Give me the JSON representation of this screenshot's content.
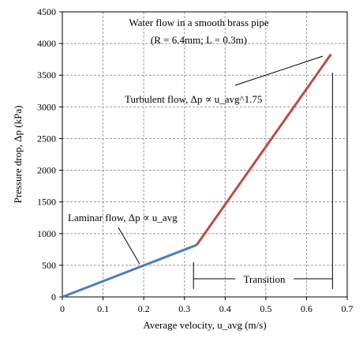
{
  "chart_data": {
    "type": "line",
    "title": "Water flow in a smooth brass pipe",
    "subtitle": "(R = 6.4mm; L = 0.3m)",
    "xlabel": "Average velocity, u_avg (m/s)",
    "ylabel": "Pressure drop, Δp (kPa)",
    "xlim": [
      0,
      0.7
    ],
    "ylim": [
      0,
      4500
    ],
    "x_ticks": [
      "0",
      "0.1",
      "0.2",
      "0.3",
      "0.4",
      "0.5",
      "0.6",
      "0.7"
    ],
    "y_ticks": [
      "0",
      "500",
      "1000",
      "1500",
      "2000",
      "2500",
      "3000",
      "3500",
      "4000",
      "4500"
    ],
    "grid": true,
    "series": [
      {
        "name": "Laminar flow",
        "color": "#4a7ebb",
        "x": [
          0,
          0.33
        ],
        "y": [
          0,
          820
        ]
      },
      {
        "name": "Turbulent flow",
        "color": "#be4b48",
        "x": [
          0.33,
          0.66
        ],
        "y": [
          820,
          3830
        ]
      }
    ],
    "annotations": {
      "laminar": {
        "text": "Laminar flow, Δp ∝ u_avg",
        "x": 0.19,
        "y": 520
      },
      "turbulent": {
        "text": "Turbulent flow, Δp ∝ u_avg^1.75",
        "x": 0.64,
        "y": 3800
      },
      "transition": {
        "text": "Transition",
        "x_start": 0.33,
        "x_end": 0.66
      }
    }
  }
}
